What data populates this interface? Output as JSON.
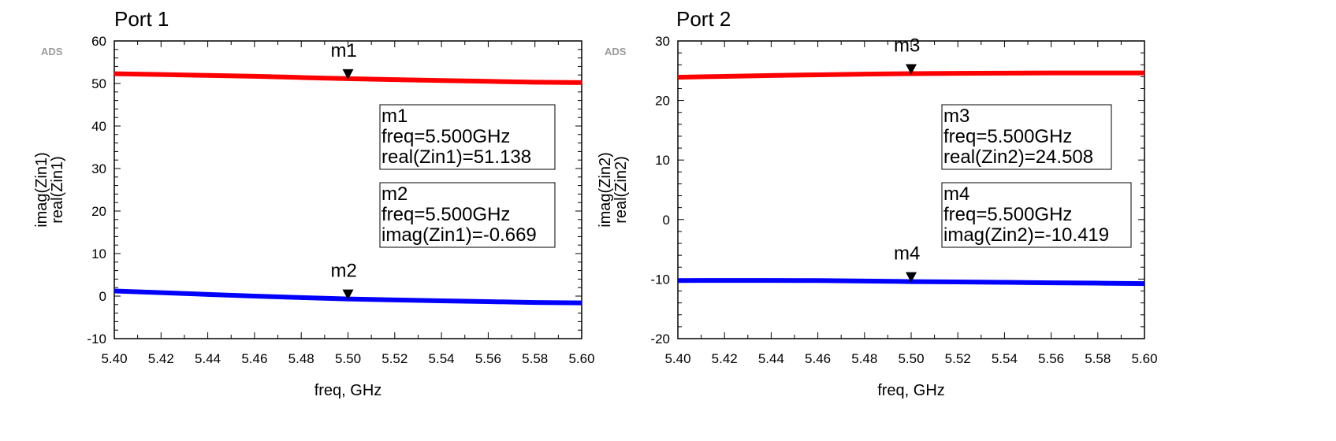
{
  "chart_data": [
    {
      "type": "line",
      "title": "Port 1",
      "watermark": "ADS",
      "xlabel": "freq, GHz",
      "ylabels": [
        {
          "text": "real(Zin1)",
          "color": "#ff0000"
        },
        {
          "text": "imag(Zin1)",
          "color": "#0000ff"
        }
      ],
      "xlim": [
        5.4,
        5.6
      ],
      "ylim": [
        -10,
        60
      ],
      "xticks": [
        "5.40",
        "5.42",
        "5.44",
        "5.46",
        "5.48",
        "5.50",
        "5.52",
        "5.54",
        "5.56",
        "5.58",
        "5.60"
      ],
      "yticks": [
        "-10",
        "0",
        "10",
        "20",
        "30",
        "40",
        "50",
        "60"
      ],
      "series": [
        {
          "name": "real(Zin1)",
          "color": "#ff0000",
          "x": [
            5.4,
            5.42,
            5.44,
            5.46,
            5.48,
            5.5,
            5.52,
            5.54,
            5.56,
            5.58,
            5.6
          ],
          "y": [
            52.3,
            52.1,
            51.9,
            51.7,
            51.4,
            51.138,
            50.9,
            50.7,
            50.5,
            50.3,
            50.2
          ]
        },
        {
          "name": "imag(Zin1)",
          "color": "#0000ff",
          "x": [
            5.4,
            5.42,
            5.44,
            5.46,
            5.48,
            5.5,
            5.52,
            5.54,
            5.56,
            5.58,
            5.6
          ],
          "y": [
            1.2,
            0.8,
            0.4,
            0.0,
            -0.35,
            -0.669,
            -0.9,
            -1.1,
            -1.3,
            -1.5,
            -1.6
          ]
        }
      ],
      "markers": [
        {
          "name": "m1",
          "x": 5.5,
          "y": 51.138,
          "lines": [
            "m1",
            "freq=5.500GHz",
            "real(Zin1)=51.138"
          ]
        },
        {
          "name": "m2",
          "x": 5.5,
          "y": -0.669,
          "lines": [
            "m2",
            "freq=5.500GHz",
            "imag(Zin1)=-0.669"
          ]
        }
      ]
    },
    {
      "type": "line",
      "title": "Port 2",
      "watermark": "ADS",
      "xlabel": "freq, GHz",
      "ylabels": [
        {
          "text": "real(Zin2)",
          "color": "#ff0000"
        },
        {
          "text": "imag(Zin2)",
          "color": "#0000ff"
        }
      ],
      "xlim": [
        5.4,
        5.6
      ],
      "ylim": [
        -20,
        30
      ],
      "xticks": [
        "5.40",
        "5.42",
        "5.44",
        "5.46",
        "5.48",
        "5.50",
        "5.52",
        "5.54",
        "5.56",
        "5.58",
        "5.60"
      ],
      "yticks": [
        "-20",
        "-10",
        "0",
        "10",
        "20",
        "30"
      ],
      "series": [
        {
          "name": "real(Zin2)",
          "color": "#ff0000",
          "x": [
            5.4,
            5.42,
            5.44,
            5.46,
            5.48,
            5.5,
            5.52,
            5.54,
            5.56,
            5.58,
            5.6
          ],
          "y": [
            23.9,
            24.05,
            24.2,
            24.32,
            24.43,
            24.508,
            24.56,
            24.6,
            24.62,
            24.63,
            24.63
          ]
        },
        {
          "name": "imag(Zin2)",
          "color": "#0000ff",
          "x": [
            5.4,
            5.42,
            5.44,
            5.46,
            5.48,
            5.5,
            5.52,
            5.54,
            5.56,
            5.58,
            5.6
          ],
          "y": [
            -10.25,
            -10.22,
            -10.22,
            -10.25,
            -10.33,
            -10.419,
            -10.48,
            -10.55,
            -10.62,
            -10.68,
            -10.75
          ]
        }
      ],
      "markers": [
        {
          "name": "m3",
          "x": 5.5,
          "y": 24.508,
          "lines": [
            "m3",
            "freq=5.500GHz",
            "real(Zin2)=24.508"
          ]
        },
        {
          "name": "m4",
          "x": 5.5,
          "y": -10.419,
          "lines": [
            "m4",
            "freq=5.500GHz",
            "imag(Zin2)=-10.419"
          ]
        }
      ]
    }
  ]
}
